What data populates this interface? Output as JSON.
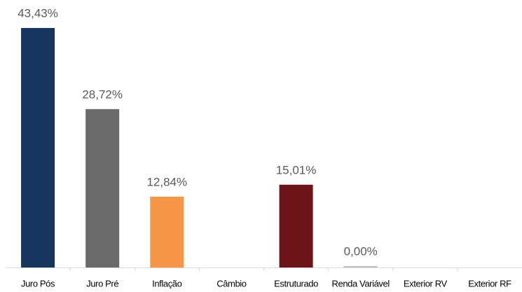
{
  "chart_data": {
    "type": "bar",
    "categories": [
      "Juro Pós",
      "Juro Pré",
      "Inflação",
      "Câmbio",
      "Estruturado",
      "Renda Variável",
      "Exterior RV",
      "Exterior RF"
    ],
    "values": [
      43.43,
      28.72,
      12.84,
      null,
      15.01,
      0.0,
      null,
      null
    ],
    "value_labels": [
      "43,43%",
      "28,72%",
      "12,84%",
      null,
      "15,01%",
      "0,00%",
      null,
      null
    ],
    "colors": [
      "#17365d",
      "#6b6b6b",
      "#f79646",
      null,
      "#6c1418",
      "#bfbfbf",
      null,
      null
    ],
    "ylim": [
      0,
      48.5
    ]
  }
}
